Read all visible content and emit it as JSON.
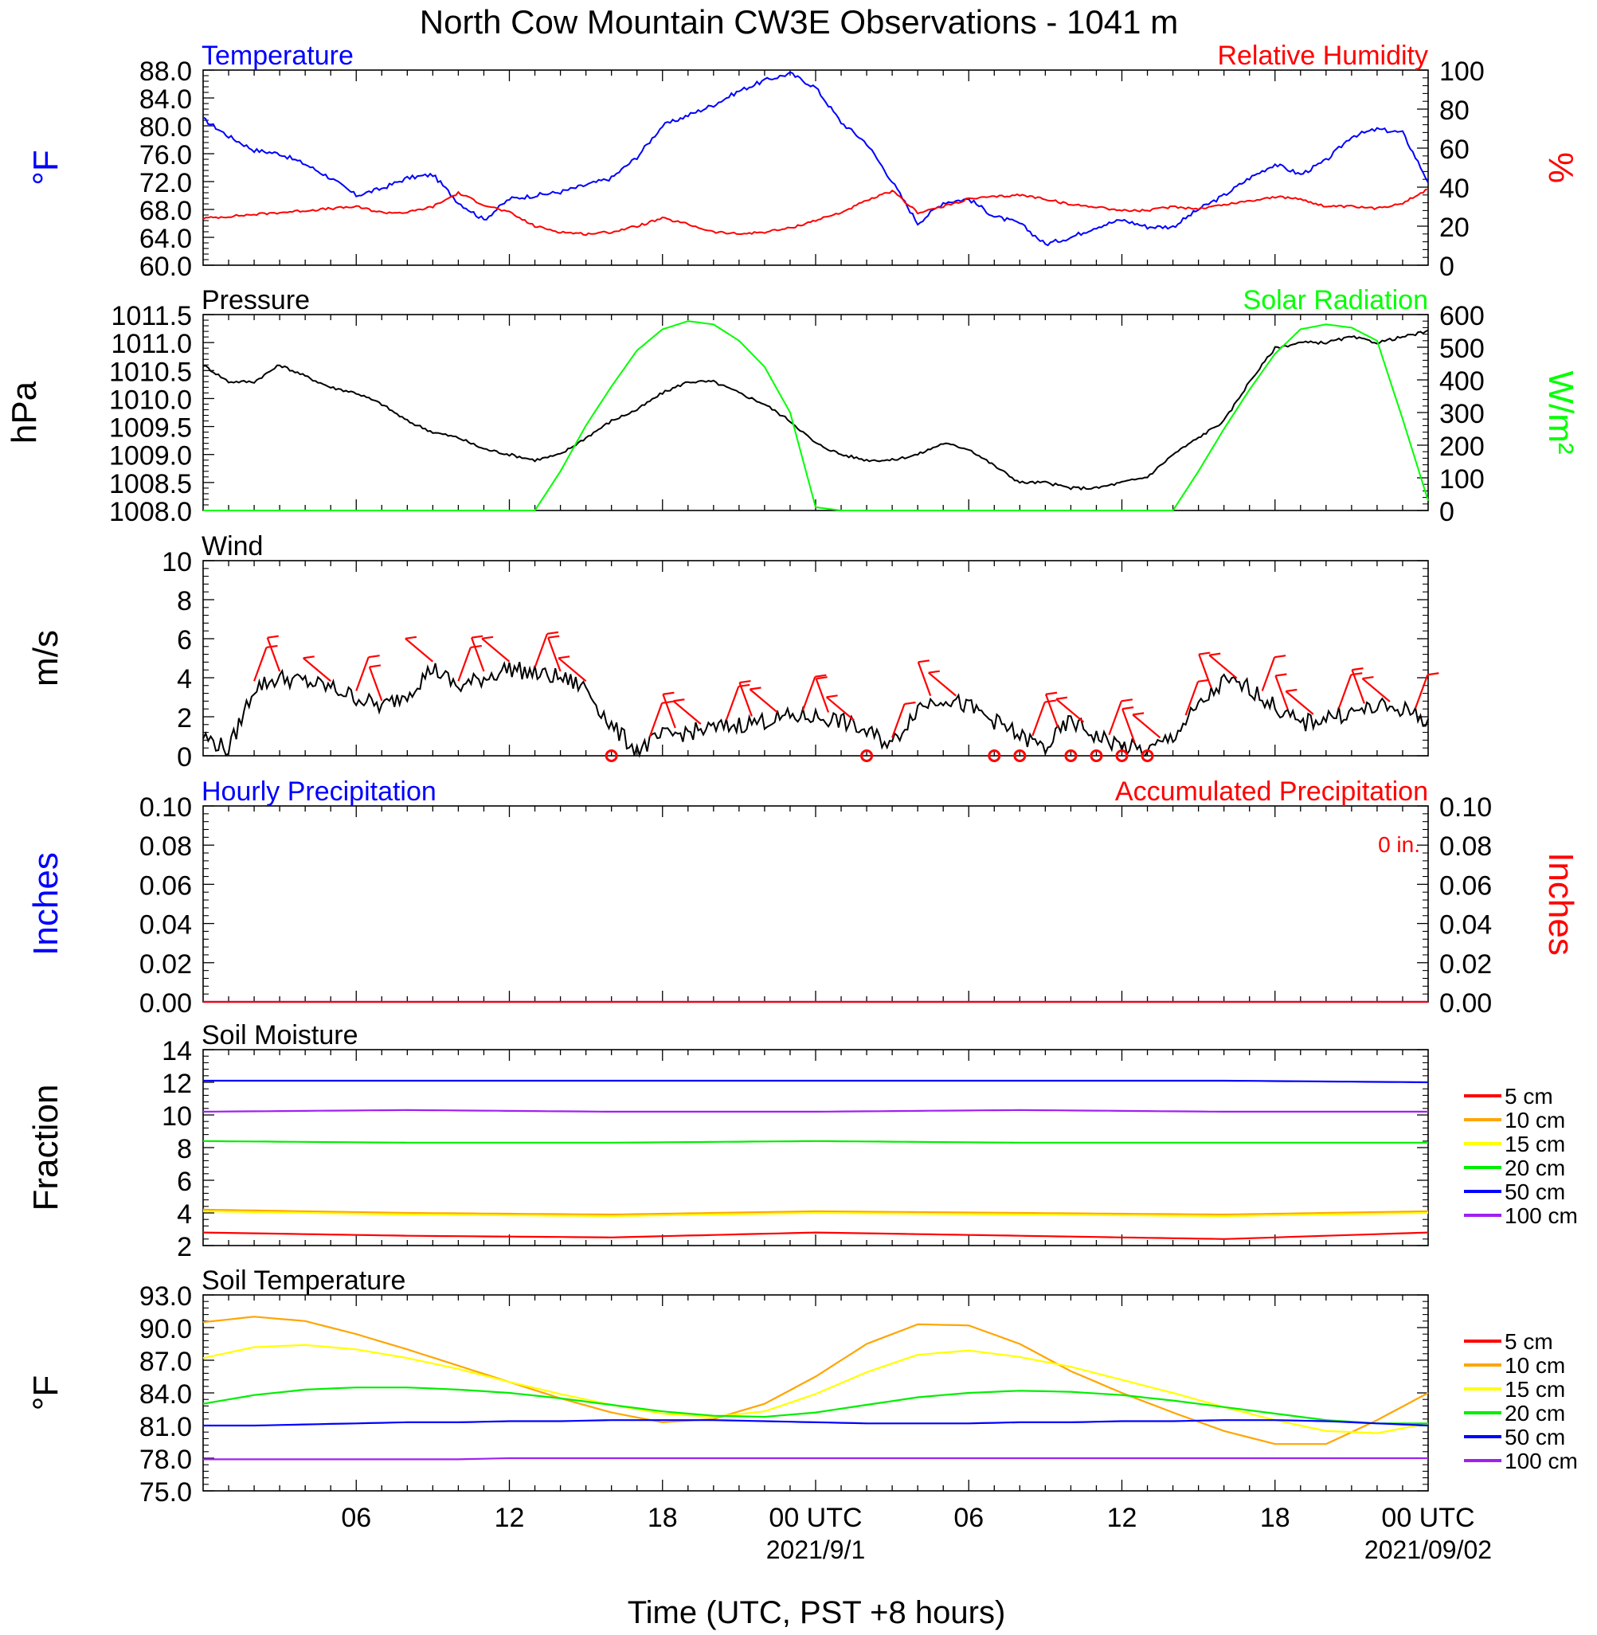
{
  "figure": {
    "title": "North Cow Mountain CW3E Observations - 1041 m",
    "x_axis": {
      "label": "Time (UTC, PST +8 hours)",
      "tick_labels": [
        "06",
        "12",
        "18",
        "00 UTC",
        "06",
        "12",
        "18",
        "00 UTC"
      ],
      "date_labels": [
        "2021/9/1",
        "2021/09/02"
      ]
    }
  },
  "chart_data": [
    {
      "type": "line",
      "title": "Temperature",
      "right_title": "Relative Humidity",
      "ylabel": "°F",
      "ylabel_right": "%",
      "ylim": [
        60,
        88
      ],
      "ylim_right": [
        0,
        100
      ],
      "yticks": [
        "88.0",
        "84.0",
        "80.0",
        "76.0",
        "72.0",
        "68.0",
        "64.0",
        "60.0"
      ],
      "yticks_right": [
        "100",
        "80",
        "60",
        "40",
        "20",
        "0"
      ],
      "x_hours": [
        0,
        1,
        2,
        3,
        4,
        5,
        6,
        7,
        8,
        9,
        10,
        11,
        12,
        13,
        14,
        15,
        16,
        17,
        18,
        19,
        20,
        21,
        22,
        23,
        24,
        25,
        26,
        27,
        28,
        29,
        30,
        31,
        32,
        33,
        34,
        35,
        36,
        37,
        38,
        39,
        40,
        41,
        42,
        43,
        44,
        45,
        46,
        47,
        48
      ],
      "series": [
        {
          "name": "Temperature",
          "axis": "left",
          "color": "#0000ff",
          "values": [
            81.0,
            78.5,
            76.5,
            76.0,
            74.5,
            72.5,
            70.0,
            71.0,
            72.5,
            73.0,
            69.0,
            66.5,
            69.5,
            70.0,
            70.5,
            71.5,
            72.5,
            75.5,
            80.0,
            81.5,
            83.0,
            85.0,
            86.5,
            87.5,
            85.5,
            80.5,
            77.5,
            72.0,
            66.0,
            69.0,
            69.5,
            67.0,
            66.0,
            63.0,
            64.0,
            65.5,
            66.5,
            65.5,
            65.5,
            68.0,
            70.0,
            72.5,
            74.5,
            73.0,
            75.0,
            78.5,
            79.5,
            79.0,
            72.0
          ]
        },
        {
          "name": "Relative Humidity",
          "axis": "right",
          "color": "#ff0000",
          "values": [
            24,
            25,
            26,
            27,
            28,
            29,
            30,
            27,
            27,
            30,
            37,
            31,
            27,
            20,
            17,
            16,
            17,
            20,
            24,
            21,
            17,
            16,
            17,
            19,
            23,
            27,
            33,
            38,
            27,
            30,
            34,
            35,
            36,
            34,
            31,
            30,
            28,
            28,
            30,
            29,
            31,
            33,
            35,
            34,
            30,
            30,
            29,
            32,
            39
          ]
        }
      ]
    },
    {
      "type": "line",
      "title": "Pressure",
      "right_title": "Solar Radiation",
      "ylabel": "hPa",
      "ylabel_right": "W/m²",
      "ylim": [
        1008.0,
        1011.5
      ],
      "ylim_right": [
        0,
        600
      ],
      "yticks": [
        "1011.5",
        "1011.0",
        "1010.5",
        "1010.0",
        "1009.5",
        "1009.0",
        "1008.5",
        "1008.0"
      ],
      "yticks_right": [
        "600",
        "500",
        "400",
        "300",
        "200",
        "100",
        "0"
      ],
      "x_hours": [
        0,
        1,
        2,
        3,
        4,
        5,
        6,
        7,
        8,
        9,
        10,
        11,
        12,
        13,
        14,
        15,
        16,
        17,
        18,
        19,
        20,
        21,
        22,
        23,
        24,
        25,
        26,
        27,
        28,
        29,
        30,
        31,
        32,
        33,
        34,
        35,
        36,
        37,
        38,
        39,
        40,
        41,
        42,
        43,
        44,
        45,
        46,
        47,
        48
      ],
      "series": [
        {
          "name": "Pressure",
          "axis": "left",
          "color": "#000000",
          "values": [
            1010.6,
            1010.3,
            1010.3,
            1010.6,
            1010.4,
            1010.2,
            1010.1,
            1009.9,
            1009.6,
            1009.4,
            1009.3,
            1009.1,
            1009.0,
            1008.9,
            1009.0,
            1009.3,
            1009.6,
            1009.8,
            1010.1,
            1010.3,
            1010.3,
            1010.1,
            1009.9,
            1009.6,
            1009.2,
            1009.0,
            1008.9,
            1008.9,
            1009.0,
            1009.2,
            1009.1,
            1008.8,
            1008.5,
            1008.5,
            1008.4,
            1008.4,
            1008.5,
            1008.6,
            1009.0,
            1009.3,
            1009.6,
            1010.3,
            1010.9,
            1011.0,
            1011.0,
            1011.1,
            1011.0,
            1011.1,
            1011.2
          ]
        },
        {
          "name": "Solar Radiation",
          "axis": "right",
          "color": "#00ff00",
          "values": [
            0,
            0,
            0,
            0,
            0,
            0,
            0,
            0,
            0,
            0,
            0,
            0,
            0,
            0,
            120,
            260,
            380,
            490,
            555,
            580,
            570,
            520,
            440,
            300,
            10,
            0,
            0,
            0,
            0,
            0,
            0,
            0,
            0,
            0,
            0,
            0,
            0,
            0,
            0,
            120,
            250,
            370,
            480,
            555,
            570,
            560,
            520,
            280,
            30
          ]
        }
      ]
    },
    {
      "type": "line",
      "title": "Wind",
      "ylabel": "m/s",
      "ylim": [
        0,
        10
      ],
      "yticks": [
        "10",
        "8",
        "6",
        "4",
        "2",
        "0"
      ],
      "x_hours": [
        0,
        1,
        2,
        3,
        4,
        5,
        6,
        7,
        8,
        9,
        10,
        11,
        12,
        13,
        14,
        15,
        16,
        17,
        18,
        19,
        20,
        21,
        22,
        23,
        24,
        25,
        26,
        27,
        28,
        29,
        30,
        31,
        32,
        33,
        34,
        35,
        36,
        37,
        38,
        39,
        40,
        41,
        42,
        43,
        44,
        45,
        46,
        47,
        48
      ],
      "series": [
        {
          "name": "Wind speed",
          "color": "#000000",
          "values": [
            1.0,
            0.3,
            3.5,
            4.0,
            3.8,
            3.5,
            3.0,
            2.5,
            3.2,
            4.5,
            3.5,
            4.0,
            4.5,
            4.2,
            4.0,
            3.5,
            1.5,
            0.3,
            1.0,
            1.2,
            1.4,
            1.6,
            1.8,
            2.0,
            2.0,
            1.8,
            1.2,
            0.6,
            2.5,
            3.0,
            2.5,
            1.8,
            1.0,
            0.4,
            1.8,
            1.0,
            0.5,
            0.2,
            1.0,
            2.5,
            3.8,
            3.5,
            2.5,
            1.6,
            2.0,
            2.2,
            2.5,
            2.4,
            1.8
          ]
        }
      ],
      "wind_barb_hours": [
        2,
        3,
        5,
        6,
        7,
        9,
        10,
        11,
        12,
        13,
        14,
        15,
        17.5,
        18.5,
        19.5,
        20.5,
        21.5,
        22.5,
        23.5,
        24.5,
        25.5,
        27,
        28.5,
        29.5,
        32.5,
        33.5,
        34.5,
        35.5,
        36.5,
        37.5,
        38.5,
        39.5,
        40.5,
        41.5,
        42.5,
        43.5,
        44.5,
        45.5,
        46.5,
        47.5
      ],
      "calm_hours": [
        16,
        26,
        31,
        32,
        34,
        35,
        36,
        37
      ]
    },
    {
      "type": "line",
      "title": "Hourly Precipitation",
      "right_title": "Accumulated Precipitation",
      "annotation": "0 in.",
      "ylabel": "Inches",
      "ylabel_right": "Inches",
      "ylim": [
        0,
        0.1
      ],
      "ylim_right": [
        0,
        0.1
      ],
      "yticks": [
        "0.10",
        "0.08",
        "0.06",
        "0.04",
        "0.02",
        "0.00"
      ],
      "yticks_right": [
        "0.10",
        "0.08",
        "0.06",
        "0.04",
        "0.02",
        "0.00"
      ],
      "x_hours": [
        0,
        48
      ],
      "series": [
        {
          "name": "Hourly Precipitation",
          "axis": "left",
          "color": "#0000ff",
          "values": [
            0,
            0
          ]
        },
        {
          "name": "Accumulated Precipitation",
          "axis": "right",
          "color": "#ff0000",
          "values": [
            0,
            0
          ]
        }
      ]
    },
    {
      "type": "line",
      "title": "Soil Moisture",
      "ylabel": "Fraction",
      "ylim": [
        2,
        14
      ],
      "yticks": [
        "14",
        "12",
        "10",
        "8",
        "6",
        "4",
        "2"
      ],
      "legend": [
        "5 cm",
        "10 cm",
        "15 cm",
        "20 cm",
        "50 cm",
        "100 cm"
      ],
      "legend_colors": [
        "#ff0000",
        "#ffa500",
        "#ffff00",
        "#00ee00",
        "#0000ff",
        "#a020f0"
      ],
      "x_hours": [
        0,
        8,
        16,
        24,
        32,
        40,
        48
      ],
      "series": [
        {
          "name": "5 cm",
          "color": "#ff0000",
          "values": [
            2.8,
            2.6,
            2.5,
            2.8,
            2.6,
            2.4,
            2.8
          ]
        },
        {
          "name": "10 cm",
          "color": "#ffa500",
          "values": [
            4.2,
            4.0,
            3.9,
            4.1,
            4.0,
            3.9,
            4.1
          ]
        },
        {
          "name": "15 cm",
          "color": "#ffff00",
          "values": [
            4.1,
            3.9,
            3.8,
            4.0,
            3.9,
            3.8,
            4.0
          ]
        },
        {
          "name": "20 cm",
          "color": "#00ee00",
          "values": [
            8.4,
            8.3,
            8.3,
            8.4,
            8.3,
            8.3,
            8.3
          ]
        },
        {
          "name": "50 cm",
          "color": "#0000ff",
          "values": [
            12.1,
            12.1,
            12.1,
            12.1,
            12.1,
            12.1,
            12.0
          ]
        },
        {
          "name": "100 cm",
          "color": "#a020f0",
          "values": [
            10.2,
            10.3,
            10.2,
            10.2,
            10.3,
            10.2,
            10.2
          ]
        }
      ]
    },
    {
      "type": "line",
      "title": "Soil Temperature",
      "ylabel": "°F",
      "ylim": [
        75,
        93
      ],
      "yticks": [
        "93.0",
        "90.0",
        "87.0",
        "84.0",
        "81.0",
        "78.0",
        "75.0"
      ],
      "legend": [
        "5 cm",
        "10 cm",
        "15 cm",
        "20 cm",
        "50 cm",
        "100 cm"
      ],
      "legend_colors": [
        "#ff0000",
        "#ffa500",
        "#ffff00",
        "#00ee00",
        "#0000ff",
        "#a020f0"
      ],
      "x_hours": [
        0,
        2,
        4,
        6,
        8,
        10,
        12,
        14,
        16,
        18,
        20,
        22,
        24,
        26,
        28,
        30,
        32,
        34,
        36,
        38,
        40,
        42,
        44,
        46,
        48
      ],
      "series": [
        {
          "name": "10 cm",
          "color": "#ffa500",
          "values": [
            90.5,
            91.0,
            90.6,
            89.4,
            88.0,
            86.5,
            85.0,
            83.5,
            82.2,
            81.3,
            81.6,
            83.0,
            85.5,
            88.5,
            90.3,
            90.2,
            88.5,
            86.0,
            84.0,
            82.2,
            80.5,
            79.3,
            79.3,
            81.5,
            84.0
          ]
        },
        {
          "name": "15 cm",
          "color": "#ffff00",
          "values": [
            87.2,
            88.2,
            88.4,
            88.0,
            87.2,
            86.2,
            85.0,
            83.9,
            82.9,
            82.1,
            81.8,
            82.3,
            83.9,
            85.9,
            87.5,
            87.9,
            87.3,
            86.4,
            85.2,
            84.0,
            82.7,
            81.5,
            80.5,
            80.3,
            81.2
          ]
        },
        {
          "name": "20 cm",
          "color": "#00ee00",
          "values": [
            83.0,
            83.8,
            84.3,
            84.5,
            84.5,
            84.3,
            84.0,
            83.5,
            82.9,
            82.3,
            81.9,
            81.8,
            82.2,
            82.9,
            83.6,
            84.0,
            84.2,
            84.1,
            83.8,
            83.3,
            82.7,
            82.1,
            81.5,
            81.2,
            81.2
          ]
        },
        {
          "name": "50 cm",
          "color": "#0000ff",
          "values": [
            81.0,
            81.0,
            81.1,
            81.2,
            81.3,
            81.3,
            81.4,
            81.4,
            81.5,
            81.5,
            81.5,
            81.4,
            81.3,
            81.2,
            81.2,
            81.2,
            81.3,
            81.3,
            81.4,
            81.4,
            81.5,
            81.5,
            81.4,
            81.2,
            81.0
          ]
        },
        {
          "name": "100 cm",
          "color": "#a020f0",
          "values": [
            77.9,
            77.9,
            77.9,
            77.9,
            77.9,
            77.9,
            78.0,
            78.0,
            78.0,
            78.0,
            78.0,
            78.0,
            78.0,
            78.0,
            78.0,
            78.0,
            78.0,
            78.0,
            78.0,
            78.0,
            78.0,
            78.0,
            78.0,
            78.0,
            78.0
          ]
        }
      ]
    }
  ]
}
